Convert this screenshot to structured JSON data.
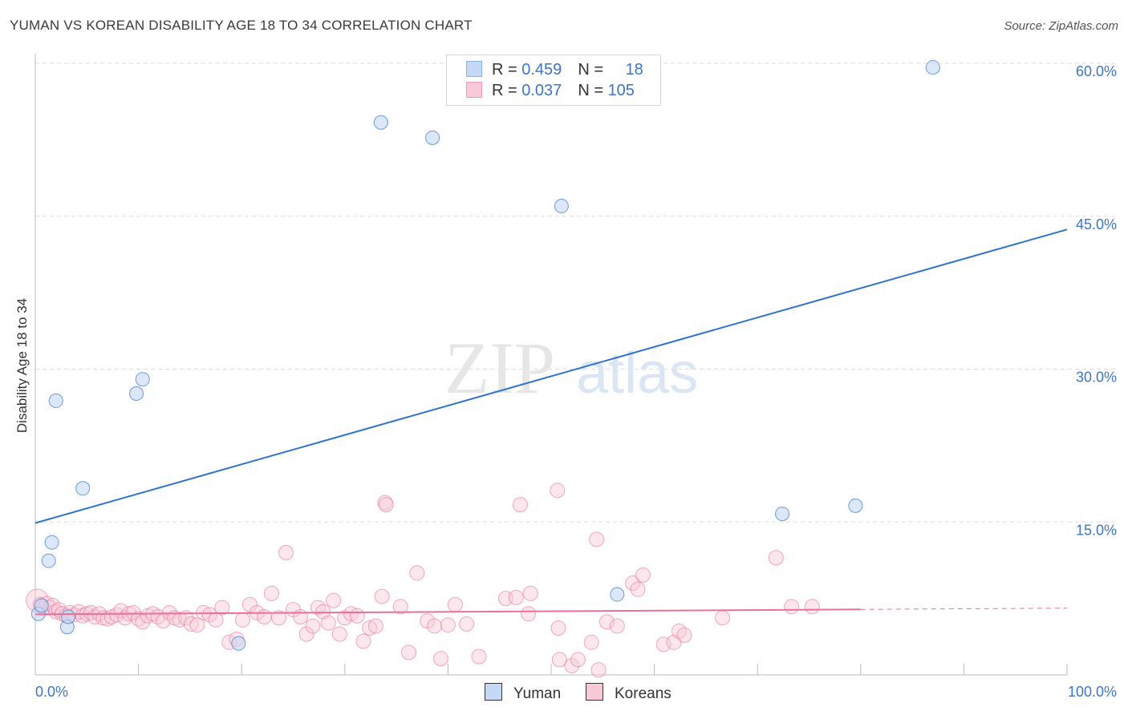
{
  "title": "YUMAN VS KOREAN DISABILITY AGE 18 TO 34 CORRELATION CHART",
  "source": "Source: ZipAtlas.com",
  "watermark": {
    "zip": "ZIP",
    "atlas": "atlas"
  },
  "legend": {
    "rows": [
      {
        "r_label": "R = ",
        "r_value": "0.459",
        "n_label": "N = ",
        "n_value": "18"
      },
      {
        "r_label": "R = ",
        "r_value": "0.037",
        "n_label": "N = ",
        "n_value": "105"
      }
    ]
  },
  "colors": {
    "yuman": "#4a86d4",
    "yuman_fill": "#c5d9f5",
    "koreans": "#e8709a",
    "koreans_fill": "#f9c9d8",
    "tick_label": "#3c76c9",
    "grid": "#dddddd"
  },
  "chart_data": {
    "type": "scatter",
    "title": "YUMAN VS KOREAN DISABILITY AGE 18 TO 34 CORRELATION CHART",
    "xlabel": "",
    "ylabel": "Disability Age 18 to 34",
    "xlim": [
      0,
      100
    ],
    "ylim": [
      0,
      60
    ],
    "x_tick_labels": [
      "0.0%",
      "100.0%"
    ],
    "y_ticks": [
      15,
      30,
      45,
      60
    ],
    "y_tick_labels": [
      "15.0%",
      "30.0%",
      "45.0%",
      "60.0%"
    ],
    "grid": true,
    "series": [
      {
        "name": "Yuman",
        "r": 0.459,
        "n": 18,
        "trend": {
          "x": [
            0,
            100
          ],
          "y": [
            14.9,
            43.7
          ],
          "dashed_from": null
        },
        "points": [
          {
            "x": 0.3,
            "y": 6.0
          },
          {
            "x": 0.6,
            "y": 6.8
          },
          {
            "x": 1.6,
            "y": 13.0
          },
          {
            "x": 1.3,
            "y": 11.2
          },
          {
            "x": 2.0,
            "y": 26.9
          },
          {
            "x": 3.1,
            "y": 4.7
          },
          {
            "x": 3.2,
            "y": 5.7
          },
          {
            "x": 4.6,
            "y": 18.3
          },
          {
            "x": 9.8,
            "y": 27.6
          },
          {
            "x": 10.4,
            "y": 29.0
          },
          {
            "x": 19.7,
            "y": 3.1
          },
          {
            "x": 33.5,
            "y": 54.2
          },
          {
            "x": 38.5,
            "y": 52.7
          },
          {
            "x": 51.0,
            "y": 46.0
          },
          {
            "x": 56.4,
            "y": 7.9
          },
          {
            "x": 72.4,
            "y": 15.8
          },
          {
            "x": 79.5,
            "y": 16.6
          },
          {
            "x": 87.0,
            "y": 59.6
          }
        ]
      },
      {
        "name": "Koreans",
        "r": 0.037,
        "n": 105,
        "trend": {
          "x": [
            0,
            100
          ],
          "y": [
            5.95,
            6.55
          ],
          "dashed_from": 80
        },
        "points": [
          {
            "x": 0.2,
            "y": 7.3
          },
          {
            "x": 0.5,
            "y": 6.9
          },
          {
            "x": 0.8,
            "y": 6.5
          },
          {
            "x": 1.1,
            "y": 7.0
          },
          {
            "x": 1.4,
            "y": 6.6
          },
          {
            "x": 1.7,
            "y": 6.8
          },
          {
            "x": 2.0,
            "y": 6.2
          },
          {
            "x": 2.3,
            "y": 6.4
          },
          {
            "x": 2.6,
            "y": 6.0
          },
          {
            "x": 3.0,
            "y": 5.8
          },
          {
            "x": 3.4,
            "y": 6.1
          },
          {
            "x": 3.8,
            "y": 5.9
          },
          {
            "x": 4.2,
            "y": 6.2
          },
          {
            "x": 4.6,
            "y": 5.8
          },
          {
            "x": 5.0,
            "y": 6.0
          },
          {
            "x": 5.4,
            "y": 6.1
          },
          {
            "x": 5.8,
            "y": 5.7
          },
          {
            "x": 6.2,
            "y": 6.0
          },
          {
            "x": 6.6,
            "y": 5.6
          },
          {
            "x": 7.0,
            "y": 5.5
          },
          {
            "x": 7.4,
            "y": 5.7
          },
          {
            "x": 7.9,
            "y": 5.9
          },
          {
            "x": 8.3,
            "y": 6.3
          },
          {
            "x": 8.7,
            "y": 5.6
          },
          {
            "x": 9.1,
            "y": 6.0
          },
          {
            "x": 9.5,
            "y": 6.1
          },
          {
            "x": 10.0,
            "y": 5.5
          },
          {
            "x": 10.4,
            "y": 5.2
          },
          {
            "x": 10.9,
            "y": 5.8
          },
          {
            "x": 11.4,
            "y": 6.0
          },
          {
            "x": 11.9,
            "y": 5.7
          },
          {
            "x": 12.4,
            "y": 5.3
          },
          {
            "x": 13.0,
            "y": 6.1
          },
          {
            "x": 13.5,
            "y": 5.6
          },
          {
            "x": 14.0,
            "y": 5.4
          },
          {
            "x": 14.6,
            "y": 5.6
          },
          {
            "x": 15.1,
            "y": 5.0
          },
          {
            "x": 15.7,
            "y": 4.9
          },
          {
            "x": 16.3,
            "y": 6.1
          },
          {
            "x": 16.9,
            "y": 5.9
          },
          {
            "x": 17.5,
            "y": 5.4
          },
          {
            "x": 18.1,
            "y": 6.6
          },
          {
            "x": 18.8,
            "y": 3.2
          },
          {
            "x": 19.5,
            "y": 3.5
          },
          {
            "x": 20.1,
            "y": 5.4
          },
          {
            "x": 20.8,
            "y": 6.9
          },
          {
            "x": 21.5,
            "y": 6.1
          },
          {
            "x": 22.2,
            "y": 5.7
          },
          {
            "x": 22.9,
            "y": 8.0
          },
          {
            "x": 23.6,
            "y": 5.6
          },
          {
            "x": 24.3,
            "y": 12.0
          },
          {
            "x": 25.0,
            "y": 6.4
          },
          {
            "x": 25.7,
            "y": 5.7
          },
          {
            "x": 26.3,
            "y": 4.0
          },
          {
            "x": 26.9,
            "y": 4.8
          },
          {
            "x": 27.4,
            "y": 6.6
          },
          {
            "x": 27.9,
            "y": 6.2
          },
          {
            "x": 28.4,
            "y": 5.1
          },
          {
            "x": 28.9,
            "y": 7.3
          },
          {
            "x": 29.5,
            "y": 4.0
          },
          {
            "x": 30.0,
            "y": 5.6
          },
          {
            "x": 30.6,
            "y": 6.0
          },
          {
            "x": 31.2,
            "y": 5.8
          },
          {
            "x": 31.8,
            "y": 3.3
          },
          {
            "x": 32.4,
            "y": 4.6
          },
          {
            "x": 33.0,
            "y": 4.8
          },
          {
            "x": 33.6,
            "y": 7.7
          },
          {
            "x": 33.9,
            "y": 16.9
          },
          {
            "x": 34.0,
            "y": 16.7
          },
          {
            "x": 35.4,
            "y": 6.7
          },
          {
            "x": 36.2,
            "y": 2.2
          },
          {
            "x": 37.0,
            "y": 10.0
          },
          {
            "x": 38.0,
            "y": 5.3
          },
          {
            "x": 38.7,
            "y": 4.8
          },
          {
            "x": 39.3,
            "y": 1.6
          },
          {
            "x": 40.0,
            "y": 4.9
          },
          {
            "x": 40.7,
            "y": 6.9
          },
          {
            "x": 41.8,
            "y": 5.0
          },
          {
            "x": 43.0,
            "y": 1.8
          },
          {
            "x": 45.6,
            "y": 7.5
          },
          {
            "x": 46.6,
            "y": 7.6
          },
          {
            "x": 47.0,
            "y": 16.7
          },
          {
            "x": 47.8,
            "y": 6.0
          },
          {
            "x": 48.0,
            "y": 8.0
          },
          {
            "x": 50.6,
            "y": 18.1
          },
          {
            "x": 50.7,
            "y": 4.6
          },
          {
            "x": 50.8,
            "y": 1.5
          },
          {
            "x": 52.0,
            "y": 0.9
          },
          {
            "x": 52.6,
            "y": 1.5
          },
          {
            "x": 53.9,
            "y": 3.2
          },
          {
            "x": 54.4,
            "y": 13.3
          },
          {
            "x": 54.6,
            "y": 0.5
          },
          {
            "x": 55.4,
            "y": 5.2
          },
          {
            "x": 56.4,
            "y": 4.8
          },
          {
            "x": 57.9,
            "y": 9.0
          },
          {
            "x": 58.4,
            "y": 8.4
          },
          {
            "x": 58.9,
            "y": 9.8
          },
          {
            "x": 60.9,
            "y": 3.0
          },
          {
            "x": 61.9,
            "y": 3.2
          },
          {
            "x": 62.4,
            "y": 4.3
          },
          {
            "x": 62.9,
            "y": 3.9
          },
          {
            "x": 66.6,
            "y": 5.6
          },
          {
            "x": 71.8,
            "y": 11.5
          },
          {
            "x": 73.3,
            "y": 6.7
          },
          {
            "x": 75.3,
            "y": 6.7
          }
        ]
      }
    ]
  }
}
